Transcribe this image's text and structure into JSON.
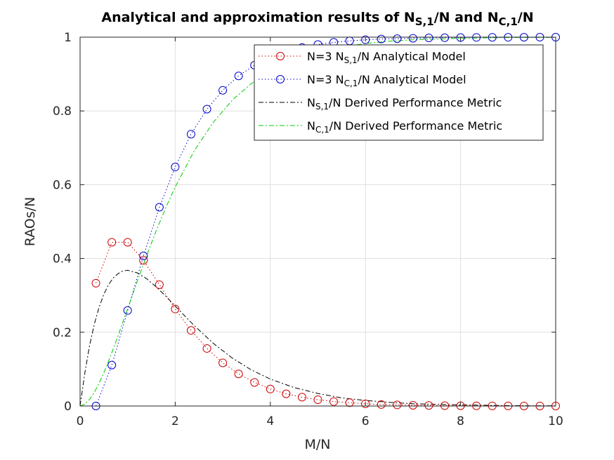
{
  "chart_data": {
    "type": "line",
    "title": {
      "prefix": "Analytical and approximation results of N",
      "sub1": "S,1",
      "mid": "/N and N",
      "sub2": "C,1",
      "suffix": "/N"
    },
    "xlabel": "M/N",
    "ylabel": "RAOs/N",
    "xlim": [
      0,
      10
    ],
    "ylim": [
      0,
      1
    ],
    "xticks": [
      "0",
      "2",
      "4",
      "6",
      "8",
      "10"
    ],
    "yticks": [
      "0",
      "0.2",
      "0.4",
      "0.6",
      "0.8",
      "1"
    ],
    "grid": true,
    "legend_position": "top-right",
    "series": [
      {
        "legend": {
          "pre": "N=3 N",
          "sub": "S,1",
          "post": "/N Analytical Model"
        },
        "color": "#cc0000",
        "style": "dotted-circles",
        "x": [
          0.333,
          0.667,
          1.0,
          1.333,
          1.667,
          2.0,
          2.333,
          2.667,
          3.0,
          3.333,
          3.667,
          4.0,
          4.333,
          4.667,
          5.0,
          5.333,
          5.667,
          6.0,
          6.333,
          6.667,
          7.0,
          7.333,
          7.667,
          8.0,
          8.333,
          8.667,
          9.0,
          9.333,
          9.667,
          10.0
        ],
        "values": [
          0.333,
          0.444,
          0.444,
          0.395,
          0.329,
          0.263,
          0.205,
          0.156,
          0.117,
          0.087,
          0.064,
          0.046,
          0.033,
          0.024,
          0.017,
          0.012,
          0.009,
          0.006,
          0.004,
          0.003,
          0.002,
          0.0015,
          0.001,
          0.0007,
          0.0005,
          0.0003,
          0.0002,
          0.0001,
          0.0001,
          0.0
        ]
      },
      {
        "legend": {
          "pre": "N=3 N",
          "sub": "C,1",
          "post": "/N Analytical Model"
        },
        "color": "#0000cc",
        "style": "dotted-circles",
        "x": [
          0.333,
          0.667,
          1.0,
          1.333,
          1.667,
          2.0,
          2.333,
          2.667,
          3.0,
          3.333,
          3.667,
          4.0,
          4.333,
          4.667,
          5.0,
          5.333,
          5.667,
          6.0,
          6.333,
          6.667,
          7.0,
          7.333,
          7.667,
          8.0,
          8.333,
          8.667,
          9.0,
          9.333,
          9.667,
          10.0
        ],
        "values": [
          0.0,
          0.111,
          0.259,
          0.407,
          0.539,
          0.648,
          0.737,
          0.805,
          0.856,
          0.895,
          0.924,
          0.945,
          0.961,
          0.972,
          0.98,
          0.986,
          0.99,
          0.993,
          0.995,
          0.996,
          0.997,
          0.998,
          0.9986,
          0.999,
          0.9994,
          0.9996,
          0.9997,
          0.9998,
          0.9999,
          0.9999
        ]
      },
      {
        "legend": {
          "pre": "N",
          "sub": "S,1",
          "post": "/N Derived Performance Metric"
        },
        "color": "#000000",
        "style": "dash-dot",
        "x": [
          0,
          0.1,
          0.2,
          0.3,
          0.4,
          0.5,
          0.6,
          0.7,
          0.8,
          0.9,
          1.0,
          1.2,
          1.4,
          1.6,
          1.8,
          2.0,
          2.4,
          2.8,
          3.2,
          3.6,
          4.0,
          4.5,
          5.0,
          5.5,
          6.0,
          6.5,
          7.0,
          8.0,
          9.0,
          10.0
        ],
        "values": [
          0,
          0.09,
          0.164,
          0.222,
          0.268,
          0.303,
          0.329,
          0.348,
          0.359,
          0.366,
          0.368,
          0.361,
          0.345,
          0.323,
          0.298,
          0.271,
          0.218,
          0.17,
          0.13,
          0.098,
          0.073,
          0.05,
          0.034,
          0.022,
          0.015,
          0.01,
          0.006,
          0.003,
          0.001,
          0.0005
        ]
      },
      {
        "legend": {
          "pre": "N",
          "sub": "C,1",
          "post": "/N Derived Performance Metric"
        },
        "color": "#00cc00",
        "style": "dash-dot",
        "x": [
          0,
          0.1,
          0.2,
          0.3,
          0.4,
          0.5,
          0.6,
          0.7,
          0.8,
          0.9,
          1.0,
          1.2,
          1.4,
          1.6,
          1.8,
          2.0,
          2.4,
          2.8,
          3.2,
          3.6,
          4.0,
          4.5,
          5.0,
          5.5,
          6.0,
          6.5,
          7.0,
          8.0,
          9.0,
          10.0
        ],
        "values": [
          0,
          0.005,
          0.018,
          0.037,
          0.062,
          0.09,
          0.122,
          0.156,
          0.191,
          0.228,
          0.264,
          0.337,
          0.408,
          0.475,
          0.537,
          0.594,
          0.692,
          0.769,
          0.829,
          0.874,
          0.908,
          0.939,
          0.96,
          0.973,
          0.983,
          0.989,
          0.993,
          0.997,
          0.999,
          0.9995
        ]
      }
    ]
  }
}
